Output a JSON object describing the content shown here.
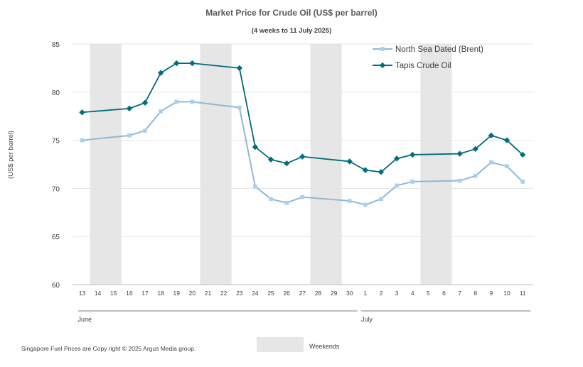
{
  "chart_data": {
    "type": "line",
    "title": "Market Price for Crude  Oil (US$ per barrel)",
    "subtitle": "(4 weeks to 11 July 2025)",
    "ylabel": "(US$ per barrel)",
    "ylim": [
      60,
      85
    ],
    "yticks": [
      60,
      65,
      70,
      75,
      80,
      85
    ],
    "grid": true,
    "legend_position": "top-right",
    "x_ticks": [
      "13",
      "14",
      "15",
      "16",
      "17",
      "18",
      "19",
      "20",
      "21",
      "22",
      "23",
      "24",
      "25",
      "26",
      "27",
      "28",
      "29",
      "30",
      "1",
      "2",
      "3",
      "4",
      "5",
      "6",
      "7",
      "8",
      "9",
      "10",
      "11"
    ],
    "months": [
      {
        "label": "June",
        "from": 0,
        "to": 17
      },
      {
        "label": "July",
        "from": 18,
        "to": 28
      }
    ],
    "weekend_bands": [
      [
        1,
        2
      ],
      [
        8,
        9
      ],
      [
        15,
        16
      ],
      [
        22,
        23
      ]
    ],
    "weekend_label": "Weekends",
    "weekend_color": "#e6e6e6",
    "series": [
      {
        "name": "North Sea Dated (Brent)",
        "color": "#8fb8d6",
        "marker_color": "#a8cfee",
        "marker": "square",
        "points": [
          {
            "i": 0,
            "v": 75.0
          },
          {
            "i": 3,
            "v": 75.5
          },
          {
            "i": 4,
            "v": 76.0
          },
          {
            "i": 5,
            "v": 78.0
          },
          {
            "i": 6,
            "v": 79.0
          },
          {
            "i": 7,
            "v": 79.0
          },
          {
            "i": 10,
            "v": 78.4
          },
          {
            "i": 11,
            "v": 70.2
          },
          {
            "i": 12,
            "v": 68.9
          },
          {
            "i": 13,
            "v": 68.5
          },
          {
            "i": 14,
            "v": 69.1
          },
          {
            "i": 17,
            "v": 68.7
          },
          {
            "i": 18,
            "v": 68.3
          },
          {
            "i": 19,
            "v": 68.9
          },
          {
            "i": 20,
            "v": 70.3
          },
          {
            "i": 21,
            "v": 70.7
          },
          {
            "i": 24,
            "v": 70.8
          },
          {
            "i": 25,
            "v": 71.3
          },
          {
            "i": 26,
            "v": 72.7
          },
          {
            "i": 27,
            "v": 72.3
          },
          {
            "i": 28,
            "v": 70.7
          }
        ]
      },
      {
        "name": "Tapis Crude Oil",
        "color": "#006b7b",
        "marker_color": "#00707f",
        "marker": "diamond",
        "points": [
          {
            "i": 0,
            "v": 77.9
          },
          {
            "i": 3,
            "v": 78.3
          },
          {
            "i": 4,
            "v": 78.9
          },
          {
            "i": 5,
            "v": 82.0
          },
          {
            "i": 6,
            "v": 83.0
          },
          {
            "i": 7,
            "v": 83.0
          },
          {
            "i": 10,
            "v": 82.5
          },
          {
            "i": 11,
            "v": 74.3
          },
          {
            "i": 12,
            "v": 73.0
          },
          {
            "i": 13,
            "v": 72.6
          },
          {
            "i": 14,
            "v": 73.3
          },
          {
            "i": 17,
            "v": 72.8
          },
          {
            "i": 18,
            "v": 71.9
          },
          {
            "i": 19,
            "v": 71.7
          },
          {
            "i": 20,
            "v": 73.1
          },
          {
            "i": 21,
            "v": 73.5
          },
          {
            "i": 24,
            "v": 73.6
          },
          {
            "i": 25,
            "v": 74.1
          },
          {
            "i": 26,
            "v": 75.5
          },
          {
            "i": 27,
            "v": 75.0
          },
          {
            "i": 28,
            "v": 73.5
          }
        ]
      }
    ]
  },
  "footer": {
    "copyright": "Singapore  Fuel Prices are  Copy right © 2025  Argus Media  group."
  }
}
